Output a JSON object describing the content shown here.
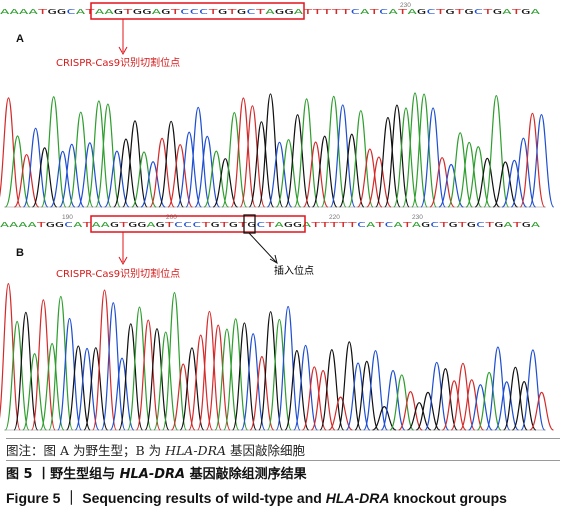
{
  "panels": [
    {
      "label": "A",
      "sequence": "AAAATGGCATAAGTGGAGTCCCTGTGCTAGGATTTTTCATCATAGCTGTGCTGATGA",
      "positions": [
        "",
        "",
        "230",
        ""
      ],
      "site_label": "CRISPR-Cas9识别切割位点"
    },
    {
      "label": "B",
      "sequence": "AAAATGGCATAAGTGGAGTCCCTGTGTGCTAGGATTTTTCATCATAGCTGTGCTGATGA",
      "positions": [
        "190",
        "200",
        "220",
        "230"
      ],
      "site_label": "CRISPR-Cas9识别切割位点",
      "insert_label": "插入位点"
    }
  ],
  "base_colors": {
    "A": "#2e9e2e",
    "C": "#1f4fd1",
    "G": "#111111",
    "T": "#d42a2a"
  },
  "caption": {
    "note_prefix": "图注：图 A 为野生型；B 为 ",
    "note_gene": "HLA-DRA",
    "note_suffix": " 基因敲除细胞",
    "cn_prefix": "图 5 丨野生型组与 ",
    "cn_gene": "HLA-DRA",
    "cn_suffix": " 基因敲除组测序结果",
    "en_prefix": "Figure 5 ｜ Sequencing results of wild-type and ",
    "en_gene": "HLA-DRA",
    "en_suffix": " knockout groups"
  }
}
